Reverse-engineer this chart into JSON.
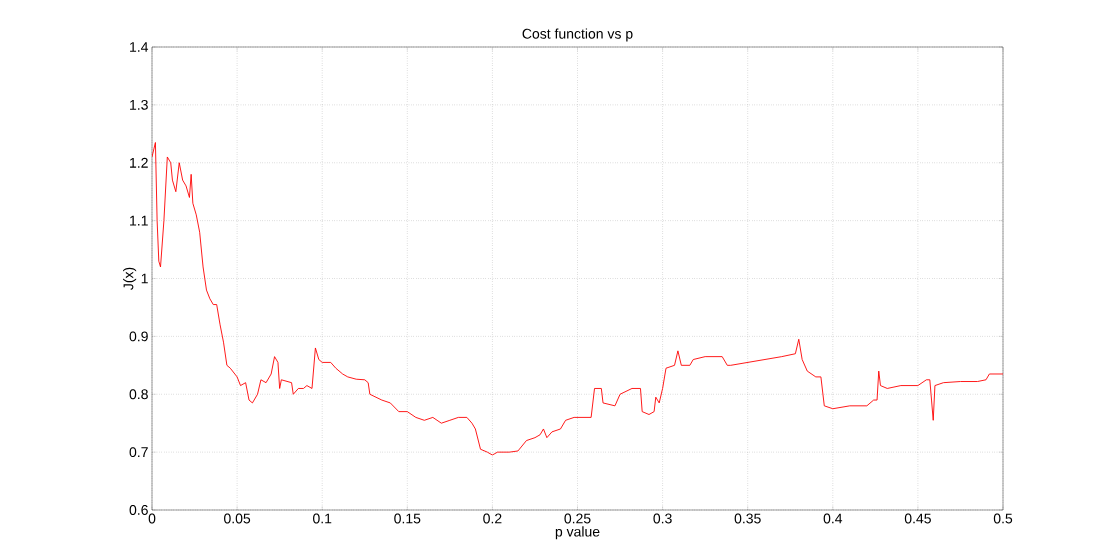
{
  "chart_data": {
    "type": "line",
    "title": "Cost function vs p",
    "xlabel": "p value",
    "ylabel": "J(x)",
    "xlim": [
      0,
      0.5
    ],
    "ylim": [
      0.6,
      1.4
    ],
    "xticks": [
      0,
      0.05,
      0.1,
      0.15,
      0.2,
      0.25,
      0.3,
      0.35,
      0.4,
      0.45,
      0.5
    ],
    "yticks": [
      0.6,
      0.7,
      0.8,
      0.9,
      1,
      1.1,
      1.2,
      1.3,
      1.4
    ],
    "grid": true,
    "marker": "none",
    "line_style": "solid",
    "series": [
      {
        "color": "#ff0000",
        "x": [
          0,
          0.002,
          0.003,
          0.004,
          0.005,
          0.007,
          0.009,
          0.011,
          0.012,
          0.014,
          0.016,
          0.018,
          0.02,
          0.022,
          0.023,
          0.024,
          0.026,
          0.028,
          0.03,
          0.032,
          0.034,
          0.036,
          0.038,
          0.04,
          0.042,
          0.044,
          0.046,
          0.05,
          0.052,
          0.055,
          0.057,
          0.059,
          0.062,
          0.064,
          0.067,
          0.07,
          0.072,
          0.074,
          0.075,
          0.076,
          0.082,
          0.083,
          0.086,
          0.089,
          0.091,
          0.094,
          0.096,
          0.098,
          0.1,
          0.105,
          0.108,
          0.112,
          0.115,
          0.12,
          0.125,
          0.127,
          0.128,
          0.135,
          0.14,
          0.145,
          0.15,
          0.155,
          0.16,
          0.165,
          0.17,
          0.175,
          0.18,
          0.185,
          0.188,
          0.19,
          0.193,
          0.197,
          0.2,
          0.203,
          0.21,
          0.215,
          0.22,
          0.225,
          0.228,
          0.23,
          0.232,
          0.235,
          0.24,
          0.243,
          0.248,
          0.258,
          0.26,
          0.264,
          0.265,
          0.272,
          0.275,
          0.282,
          0.287,
          0.288,
          0.292,
          0.295,
          0.296,
          0.298,
          0.3,
          0.302,
          0.307,
          0.309,
          0.311,
          0.316,
          0.318,
          0.325,
          0.335,
          0.338,
          0.34,
          0.35,
          0.36,
          0.37,
          0.378,
          0.38,
          0.382,
          0.385,
          0.39,
          0.393,
          0.395,
          0.4,
          0.41,
          0.42,
          0.424,
          0.426,
          0.427,
          0.428,
          0.432,
          0.44,
          0.45,
          0.455,
          0.457,
          0.458,
          0.459,
          0.46,
          0.465,
          0.475,
          0.485,
          0.49,
          0.492,
          0.5
        ],
        "values": [
          1.21,
          1.235,
          1.1,
          1.03,
          1.02,
          1.1,
          1.21,
          1.2,
          1.17,
          1.15,
          1.2,
          1.17,
          1.16,
          1.14,
          1.18,
          1.13,
          1.11,
          1.08,
          1.02,
          0.98,
          0.965,
          0.955,
          0.955,
          0.92,
          0.89,
          0.85,
          0.845,
          0.83,
          0.815,
          0.82,
          0.79,
          0.785,
          0.8,
          0.825,
          0.82,
          0.835,
          0.865,
          0.855,
          0.81,
          0.825,
          0.82,
          0.8,
          0.81,
          0.81,
          0.815,
          0.81,
          0.88,
          0.86,
          0.855,
          0.855,
          0.845,
          0.835,
          0.83,
          0.826,
          0.825,
          0.82,
          0.8,
          0.79,
          0.785,
          0.77,
          0.77,
          0.76,
          0.755,
          0.76,
          0.75,
          0.755,
          0.76,
          0.76,
          0.75,
          0.74,
          0.705,
          0.7,
          0.695,
          0.7,
          0.7,
          0.702,
          0.72,
          0.725,
          0.73,
          0.74,
          0.725,
          0.735,
          0.74,
          0.755,
          0.76,
          0.76,
          0.81,
          0.81,
          0.785,
          0.78,
          0.8,
          0.81,
          0.81,
          0.77,
          0.765,
          0.77,
          0.795,
          0.785,
          0.81,
          0.845,
          0.85,
          0.875,
          0.85,
          0.85,
          0.86,
          0.865,
          0.865,
          0.85,
          0.85,
          0.855,
          0.86,
          0.865,
          0.87,
          0.895,
          0.86,
          0.84,
          0.83,
          0.83,
          0.78,
          0.775,
          0.78,
          0.78,
          0.79,
          0.79,
          0.84,
          0.815,
          0.81,
          0.815,
          0.815,
          0.825,
          0.825,
          0.79,
          0.755,
          0.815,
          0.82,
          0.822,
          0.822,
          0.825,
          0.835,
          0.835
        ]
      }
    ]
  }
}
